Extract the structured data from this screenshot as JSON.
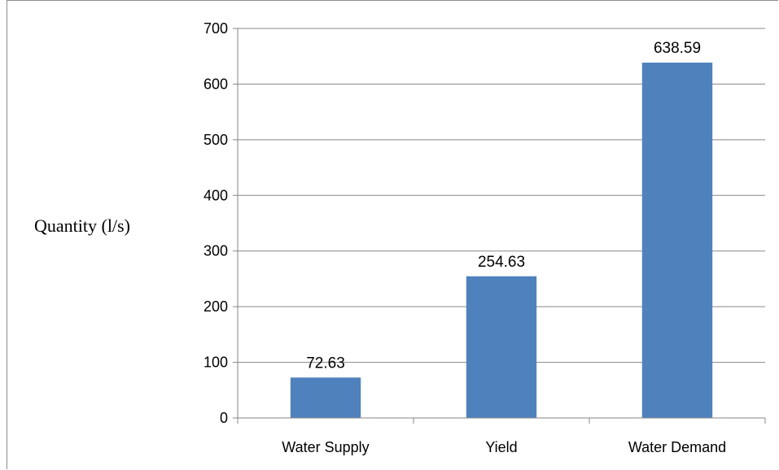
{
  "chart_data": {
    "type": "bar",
    "categories": [
      "Water Supply",
      "Yield",
      "Water Demand"
    ],
    "values": [
      72.63,
      254.63,
      638.59
    ],
    "data_labels": [
      "72.63",
      "254.63",
      "638.59"
    ],
    "title": "",
    "xlabel": "",
    "ylabel": "Quantity (l/s)",
    "ylim": [
      0,
      700
    ],
    "yticks": [
      0,
      100,
      200,
      300,
      400,
      500,
      600,
      700
    ],
    "grid": true,
    "legend": "none",
    "bar_color": "#4f81bd",
    "grid_color": "#878787"
  }
}
